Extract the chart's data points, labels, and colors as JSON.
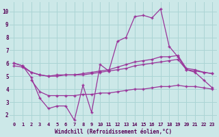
{
  "background_color": "#cce8e8",
  "grid_color": "#aad4d4",
  "line_color": "#993399",
  "xlabel": "Windchill (Refroidissement éolien,°C)",
  "x_hours": [
    0,
    1,
    2,
    3,
    4,
    5,
    6,
    7,
    8,
    9,
    10,
    11,
    12,
    13,
    14,
    15,
    16,
    17,
    18,
    19,
    20,
    21,
    22,
    23
  ],
  "curve_main": [
    6.0,
    5.8,
    4.9,
    3.3,
    2.5,
    2.7,
    2.7,
    1.6,
    4.3,
    2.2,
    5.9,
    5.4,
    7.7,
    8.0,
    9.6,
    9.7,
    9.5,
    10.2,
    7.3,
    6.5,
    5.5,
    5.3,
    4.7,
    4.1
  ],
  "curve_upper1": [
    6.0,
    5.8,
    5.3,
    5.1,
    5.0,
    5.1,
    5.1,
    5.1,
    5.2,
    5.3,
    5.4,
    5.5,
    5.7,
    5.9,
    6.1,
    6.2,
    6.3,
    6.5,
    6.5,
    6.6,
    5.6,
    5.5,
    5.3,
    5.2
  ],
  "curve_upper2": [
    5.8,
    5.7,
    5.3,
    5.1,
    5.0,
    5.0,
    5.1,
    5.1,
    5.1,
    5.2,
    5.3,
    5.4,
    5.5,
    5.6,
    5.8,
    5.9,
    6.0,
    6.1,
    6.2,
    6.3,
    5.5,
    5.4,
    5.3,
    5.2
  ],
  "curve_lower": [
    null,
    null,
    4.7,
    3.8,
    3.5,
    3.5,
    3.5,
    3.5,
    3.6,
    3.6,
    3.7,
    3.7,
    3.8,
    3.9,
    4.0,
    4.0,
    4.1,
    4.2,
    4.2,
    4.3,
    4.2,
    4.2,
    4.1,
    4.0
  ],
  "ylim": [
    1.5,
    10.7
  ],
  "yticks": [
    2,
    3,
    4,
    5,
    6,
    7,
    8,
    9,
    10
  ],
  "xlim": [
    -0.5,
    23.5
  ]
}
